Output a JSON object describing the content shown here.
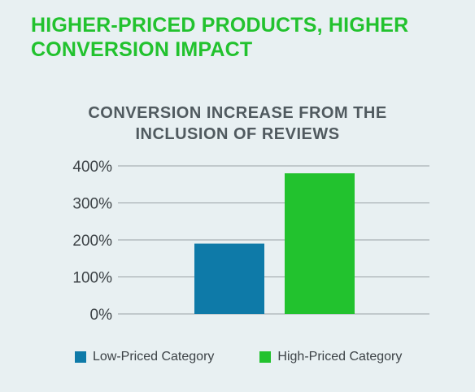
{
  "headline": {
    "line1": "HIGHER-PRICED PRODUCTS, HIGHER",
    "line2": "CONVERSION IMPACT"
  },
  "chart_data": {
    "type": "bar",
    "title_lines": [
      "CONVERSION INCREASE FROM THE",
      "INCLUSION OF REVIEWS"
    ],
    "categories": [
      "Low-Priced Category",
      "High-Priced Category"
    ],
    "values": [
      190,
      380
    ],
    "colors": [
      "#0e7aa8",
      "#22c22e"
    ],
    "ylim": [
      0,
      400
    ],
    "yticks": [
      {
        "value": 400,
        "label": "400%"
      },
      {
        "value": 300,
        "label": "300%"
      },
      {
        "value": 200,
        "label": "200%"
      },
      {
        "value": 100,
        "label": "100%"
      },
      {
        "value": 0,
        "label": "0%"
      }
    ],
    "grid": true,
    "legend": "bottom"
  }
}
